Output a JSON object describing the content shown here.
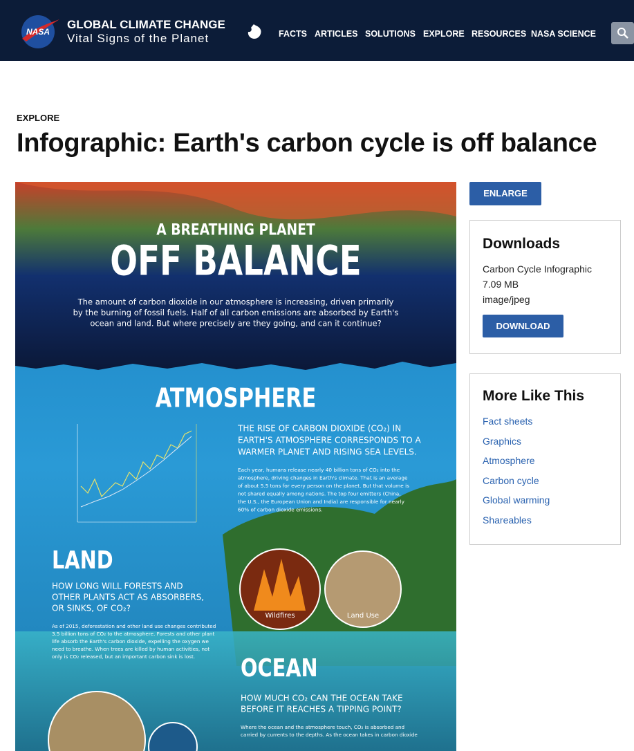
{
  "header": {
    "logo": "NASA",
    "site_title": "GLOBAL CLIMATE CHANGE",
    "site_subtitle": "Vital Signs of the Planet",
    "nav": [
      "FACTS",
      "ARTICLES",
      "SOLUTIONS",
      "EXPLORE",
      "RESOURCES",
      "NASA SCIENCE"
    ]
  },
  "article": {
    "section": "EXPLORE",
    "title": "Infographic: Earth's carbon cycle is off balance"
  },
  "infographic": {
    "kicker": "A BREATHING PLANET",
    "headline": "OFF BALANCE",
    "intro": [
      "The amount of carbon dioxide in our atmosphere is increasing, driven primarily",
      "by the burning of fossil fuels. Half of all carbon emissions are absorbed by Earth's",
      "ocean and land. But where precisely are they going, and can it continue?"
    ],
    "atmosphere": {
      "heading": "ATMOSPHERE",
      "lead": [
        "THE RISE OF CARBON DIOXIDE (CO₂) IN",
        "EARTH'S ATMOSPHERE CORRESPONDS TO A",
        "WARMER PLANET AND RISING SEA LEVELS."
      ],
      "body": [
        "Each year, humans release nearly 40 billion tons of CO₂ into the",
        "atmosphere, driving changes in Earth's climate. That is an average",
        "of about 5.5 tons for every person on the planet. But that volume is",
        "not shared equally among nations. The top four emitters (China,",
        "the U.S., the European Union and India) are responsible for nearly",
        "60% of carbon dioxide emissions."
      ]
    },
    "land": {
      "heading": "LAND",
      "lead": [
        "HOW LONG WILL FORESTS AND",
        "OTHER PLANTS ACT AS ABSORBERS,",
        "OR SINKS, OF CO₂?"
      ],
      "body": [
        "As of 2015, deforestation and other land use changes contributed",
        "3.5 billion tons of CO₂ to the atmosphere. Forests and other plant",
        "life absorb the Earth's carbon dioxide, expelling the oxygen we",
        "need to breathe. When trees are killed by human activities, not",
        "only is CO₂ released, but an important carbon sink is lost."
      ],
      "images": [
        "Wildfires",
        "Land Use"
      ]
    },
    "ocean": {
      "heading": "OCEAN",
      "lead": [
        "HOW MUCH CO₂ CAN THE OCEAN TAKE",
        "BEFORE IT REACHES A TIPPING POINT?"
      ],
      "body": [
        "Where the ocean and the atmosphere touch, CO₂ is absorbed and",
        "carried by currents to the depths. As the ocean takes in carbon dioxide"
      ]
    }
  },
  "sidebar": {
    "enlarge": "ENLARGE",
    "downloads": {
      "title": "Downloads",
      "file_name": "Carbon Cycle Infographic",
      "file_size": "7.09 MB",
      "file_type": "image/jpeg",
      "button": "DOWNLOAD"
    },
    "more": {
      "title": "More Like This",
      "links": [
        "Fact sheets",
        "Graphics",
        "Atmosphere",
        "Carbon cycle",
        "Global warming",
        "Shareables"
      ]
    }
  }
}
